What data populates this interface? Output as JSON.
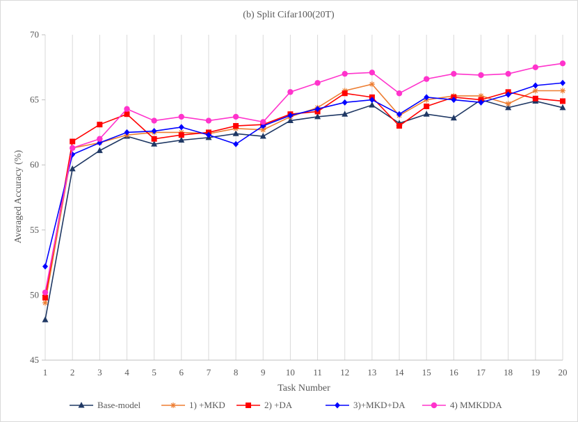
{
  "chart_data": {
    "type": "line",
    "title": "(b)  Split Cifar100(20T)",
    "xlabel": "Task Number",
    "ylabel": "Averaged Accuracy (%)",
    "ylim": [
      45,
      70
    ],
    "yticks": [
      45,
      50,
      55,
      60,
      65,
      70
    ],
    "grid": "vertical",
    "legend_position": "bottom",
    "categories": [
      1,
      2,
      3,
      4,
      5,
      6,
      7,
      8,
      9,
      10,
      11,
      12,
      13,
      14,
      15,
      16,
      17,
      18,
      19,
      20
    ],
    "series": [
      {
        "name": "Base-model",
        "color": "#1f3864",
        "marker": "triangle",
        "values": [
          48.1,
          59.7,
          61.1,
          62.2,
          61.6,
          61.9,
          62.1,
          62.4,
          62.2,
          63.4,
          63.7,
          63.9,
          64.6,
          63.2,
          63.9,
          63.6,
          65.0,
          64.4,
          64.9,
          64.4
        ]
      },
      {
        "name": "1) +MKD",
        "color": "#ed7d31",
        "marker": "star",
        "values": [
          49.4,
          61.3,
          61.7,
          62.3,
          62.5,
          62.5,
          62.4,
          62.8,
          62.7,
          63.7,
          64.4,
          65.7,
          66.2,
          63.8,
          65.0,
          65.3,
          65.3,
          64.7,
          65.7,
          65.7
        ]
      },
      {
        "name": "2) +DA",
        "color": "#ff0000",
        "marker": "square",
        "values": [
          49.8,
          61.8,
          63.1,
          63.9,
          62.0,
          62.3,
          62.5,
          63.0,
          63.1,
          63.9,
          64.1,
          65.5,
          65.2,
          63.0,
          64.5,
          65.2,
          65.0,
          65.6,
          65.1,
          64.9
        ]
      },
      {
        "name": "3)+MKD+DA",
        "color": "#0000ff",
        "marker": "diamond",
        "values": [
          52.2,
          60.8,
          61.7,
          62.5,
          62.6,
          62.9,
          62.3,
          61.6,
          63.0,
          63.8,
          64.3,
          64.8,
          65.0,
          63.9,
          65.2,
          65.0,
          64.8,
          65.4,
          66.1,
          66.3
        ]
      },
      {
        "name": "4) MMKDDA",
        "color": "#ff33cc",
        "marker": "circle",
        "values": [
          50.2,
          61.3,
          62.0,
          64.3,
          63.4,
          63.7,
          63.4,
          63.7,
          63.3,
          65.6,
          66.3,
          67.0,
          67.1,
          65.5,
          66.6,
          67.0,
          66.9,
          67.0,
          67.5,
          67.8
        ]
      }
    ]
  }
}
